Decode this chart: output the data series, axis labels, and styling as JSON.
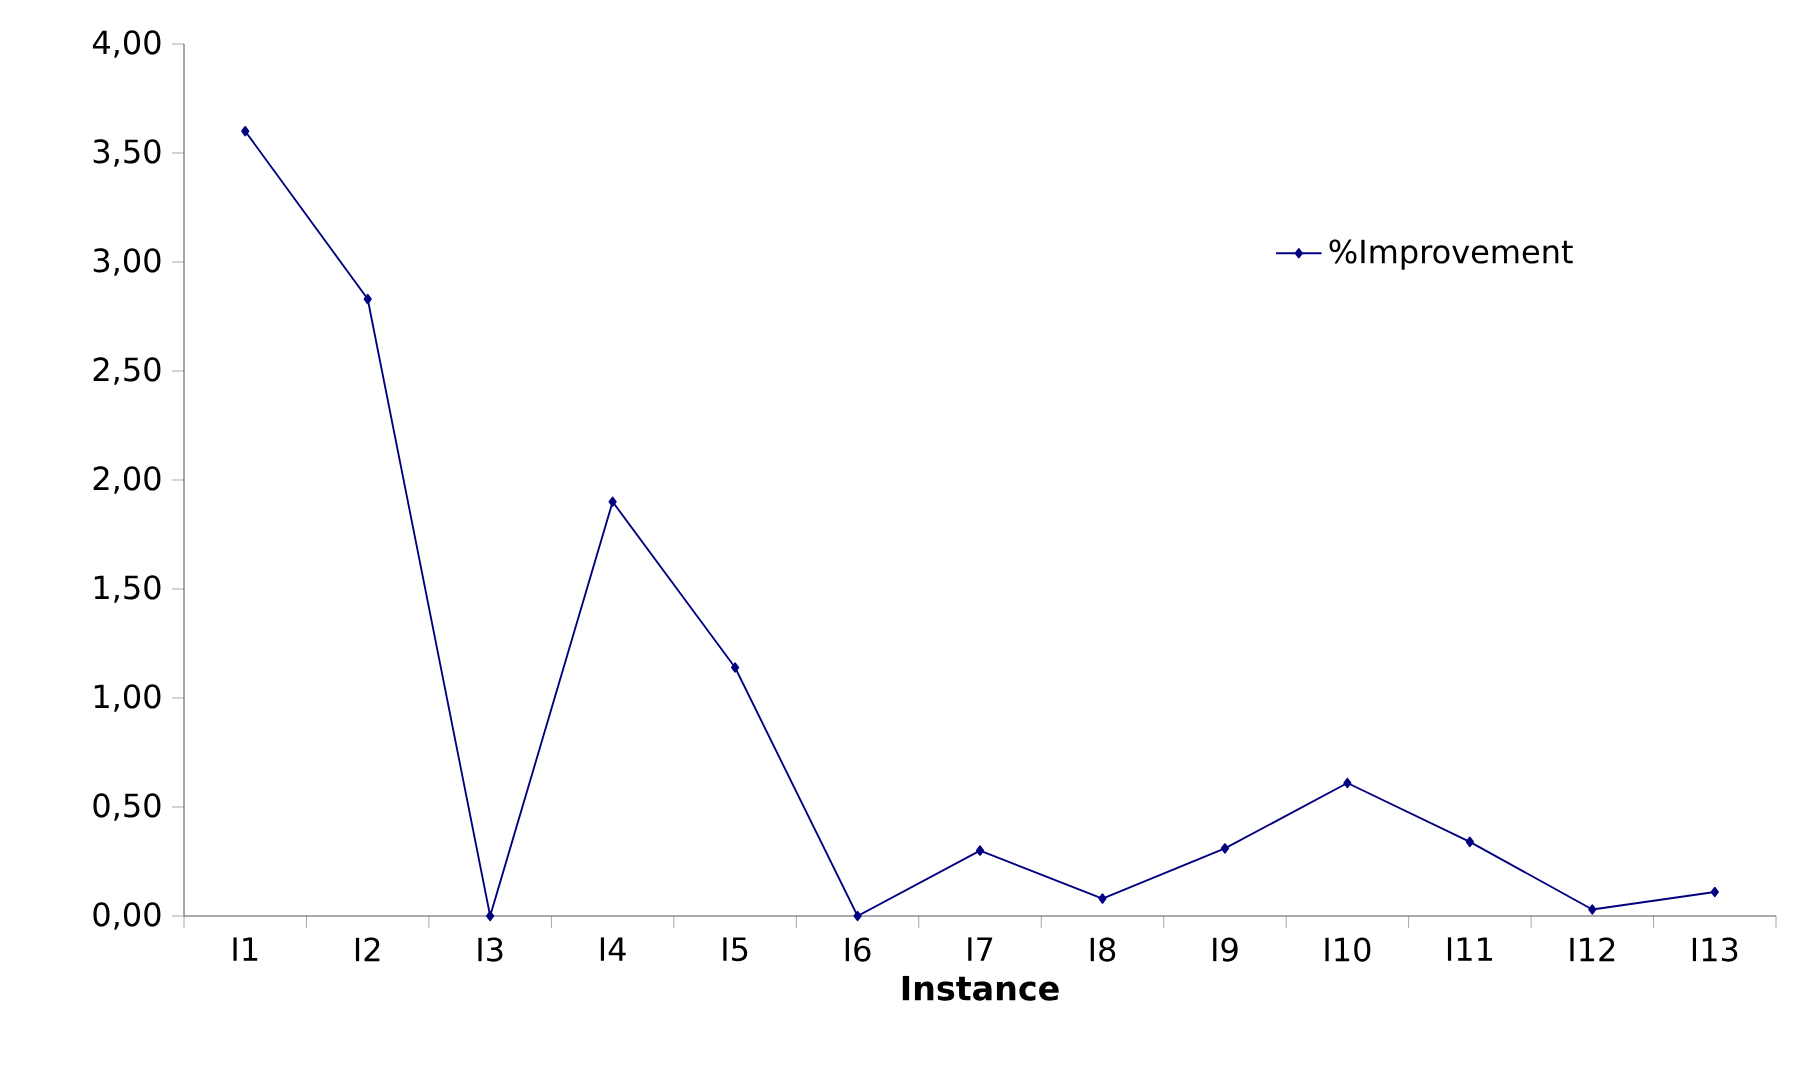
{
  "chart_data": {
    "type": "line",
    "xlabel": "Instance",
    "categories": [
      "I1",
      "I2",
      "I3",
      "I4",
      "I5",
      "I6",
      "I7",
      "I8",
      "I9",
      "I10",
      "I11",
      "I12",
      "I13"
    ],
    "series": [
      {
        "name": "%Improvement",
        "color": "#000080",
        "values": [
          3.6,
          2.83,
          0,
          1.9,
          1.14,
          0,
          0.3,
          0.08,
          0.31,
          0.61,
          0.34,
          0.03,
          0.11
        ]
      }
    ],
    "ylim": [
      0,
      4
    ],
    "yticks": [
      {
        "value": 0,
        "label": "0,00"
      },
      {
        "value": 0.5,
        "label": "0,50"
      },
      {
        "value": 1,
        "label": "1,00"
      },
      {
        "value": 1.5,
        "label": "1,50"
      },
      {
        "value": 2,
        "label": "2,00"
      },
      {
        "value": 2.5,
        "label": "2,50"
      },
      {
        "value": 3,
        "label": "3,00"
      },
      {
        "value": 3.5,
        "label": "3,50"
      },
      {
        "value": 4,
        "label": "4,00"
      }
    ],
    "legend": "top right",
    "marker": "diamond",
    "line_style": "solid"
  }
}
